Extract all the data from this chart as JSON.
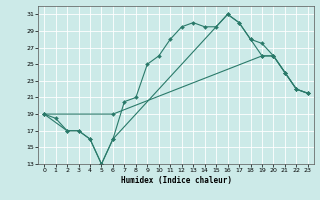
{
  "xlabel": "Humidex (Indice chaleur)",
  "bg_color": "#cceae8",
  "line_color": "#2a7a6a",
  "xlim": [
    -0.5,
    23.5
  ],
  "ylim": [
    13,
    32
  ],
  "xticks": [
    0,
    1,
    2,
    3,
    4,
    5,
    6,
    7,
    8,
    9,
    10,
    11,
    12,
    13,
    14,
    15,
    16,
    17,
    18,
    19,
    20,
    21,
    22,
    23
  ],
  "yticks": [
    13,
    15,
    17,
    19,
    21,
    23,
    25,
    27,
    29,
    31
  ],
  "line1_x": [
    0,
    1,
    2,
    3,
    4,
    5,
    6,
    7,
    8,
    9,
    10,
    11,
    12,
    13,
    14,
    15,
    16,
    17,
    18,
    19,
    20,
    21,
    22,
    23
  ],
  "line1_y": [
    19,
    18.5,
    17,
    17,
    16,
    13,
    16,
    20.5,
    21,
    25,
    26,
    28,
    29.5,
    30,
    29.5,
    29.5,
    31,
    30,
    28,
    27.5,
    26,
    24,
    22,
    21.5
  ],
  "line2_x": [
    0,
    6,
    19,
    20,
    21,
    22,
    23
  ],
  "line2_y": [
    19,
    19,
    26,
    26,
    24,
    22,
    21.5
  ],
  "line3_x": [
    0,
    2,
    3,
    4,
    5,
    6,
    16,
    17,
    18,
    19,
    20,
    21,
    22,
    23
  ],
  "line3_y": [
    19,
    17,
    17,
    16,
    13,
    16,
    31,
    30,
    28,
    26,
    26,
    24,
    22,
    21.5
  ]
}
